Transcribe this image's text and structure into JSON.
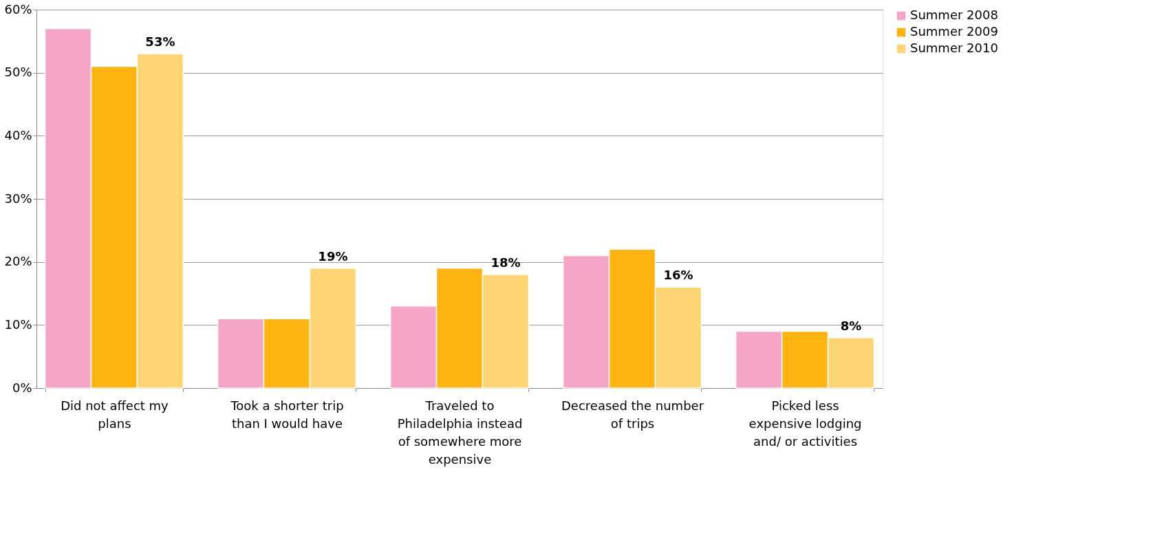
{
  "chart_data": {
    "type": "bar",
    "categories": [
      "Did not affect my plans",
      "Took a shorter trip than I would have",
      "Traveled to Philadelphia instead of somewhere more expensive",
      "Decreased the number of trips",
      "Picked less expensive lodging and/ or activities"
    ],
    "series": [
      {
        "name": "Summer 2008",
        "color": "#f6a5c8",
        "values": [
          57,
          11,
          13,
          21,
          9
        ]
      },
      {
        "name": "Summer 2009",
        "color": "#ffb30f",
        "values": [
          51,
          11,
          19,
          22,
          9
        ]
      },
      {
        "name": "Summer 2010",
        "color": "#ffd472",
        "values": [
          53,
          19,
          18,
          16,
          8
        ],
        "value_labels": [
          "53%",
          "19%",
          "18%",
          "16%",
          "8%"
        ]
      }
    ],
    "ylim": [
      0,
      60
    ],
    "yticks": [
      {
        "value": 0,
        "label": "0%"
      },
      {
        "value": 10,
        "label": "10%"
      },
      {
        "value": 20,
        "label": "20%"
      },
      {
        "value": 30,
        "label": "30%"
      },
      {
        "value": 40,
        "label": "40%"
      },
      {
        "value": 50,
        "label": "50%"
      },
      {
        "value": 60,
        "label": "60%"
      }
    ],
    "grid": "y",
    "legend": "right"
  }
}
